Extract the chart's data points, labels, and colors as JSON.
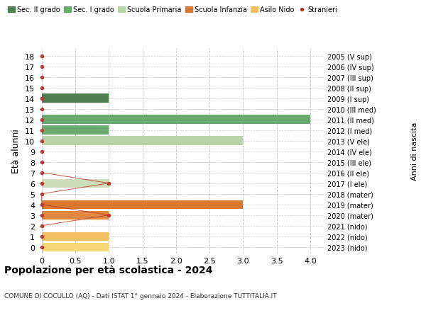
{
  "ages": [
    18,
    17,
    16,
    15,
    14,
    13,
    12,
    11,
    10,
    9,
    8,
    7,
    6,
    5,
    4,
    3,
    2,
    1,
    0
  ],
  "years_labels": [
    "2005 (V sup)",
    "2006 (IV sup)",
    "2007 (III sup)",
    "2008 (II sup)",
    "2009 (I sup)",
    "2010 (III med)",
    "2011 (II med)",
    "2012 (I med)",
    "2013 (V ele)",
    "2014 (IV ele)",
    "2015 (III ele)",
    "2016 (II ele)",
    "2017 (I ele)",
    "2018 (mater)",
    "2019 (mater)",
    "2020 (mater)",
    "2021 (nido)",
    "2022 (nido)",
    "2023 (nido)"
  ],
  "bars": [
    {
      "age": 14,
      "value": 1,
      "color": "#4e7d52"
    },
    {
      "age": 12,
      "value": 4,
      "color": "#6aaa6e"
    },
    {
      "age": 11,
      "value": 1,
      "color": "#6aaa6e"
    },
    {
      "age": 10,
      "value": 3,
      "color": "#b8d4a8"
    },
    {
      "age": 6,
      "value": 1,
      "color": "#ccddb8"
    },
    {
      "age": 4,
      "value": 3,
      "color": "#d97830"
    },
    {
      "age": 3,
      "value": 1,
      "color": "#e08840"
    },
    {
      "age": 1,
      "value": 1,
      "color": "#f0c060"
    },
    {
      "age": 0,
      "value": 1,
      "color": "#f5d878"
    }
  ],
  "stranieri_all_ages": [
    18,
    17,
    16,
    15,
    14,
    13,
    12,
    11,
    10,
    9,
    8,
    7,
    6,
    5,
    4,
    3,
    2,
    1,
    0
  ],
  "stranieri_line_ages": [
    7,
    6,
    5,
    4,
    3,
    2
  ],
  "stranieri_line_values": [
    0,
    1,
    0,
    0,
    1,
    0
  ],
  "legend_items": [
    {
      "label": "Sec. II grado",
      "color": "#4e7d52"
    },
    {
      "label": "Sec. I grado",
      "color": "#6aaa6e"
    },
    {
      "label": "Scuola Primaria",
      "color": "#b8d4a8"
    },
    {
      "label": "Scuola Infanzia",
      "color": "#d97830"
    },
    {
      "label": "Asilo Nido",
      "color": "#f0c060"
    },
    {
      "label": "Stranieri",
      "color": "#c0392b"
    }
  ],
  "ylabel_left": "Età alunni",
  "ylabel_right": "Anni di nascita",
  "title": "Popolazione per età scolastica - 2024",
  "subtitle": "COMUNE DI COCULLO (AQ) - Dati ISTAT 1° gennaio 2024 - Elaborazione TUTTITALIA.IT",
  "xlim": [
    -0.05,
    4.2
  ],
  "xticks": [
    0,
    0.5,
    1.0,
    1.5,
    2.0,
    2.5,
    3.0,
    3.5,
    4.0
  ],
  "xtick_labels": [
    "0",
    "0.5",
    "1.0",
    "1.5",
    "2.0",
    "2.5",
    "3.0",
    "3.5",
    "4.0"
  ],
  "ylim": [
    -0.6,
    18.7
  ],
  "bg_color": "#ffffff",
  "grid_color": "#cccccc",
  "bar_height": 0.82,
  "stranieri_color": "#c0392b",
  "stranieri_dot_size": 4
}
